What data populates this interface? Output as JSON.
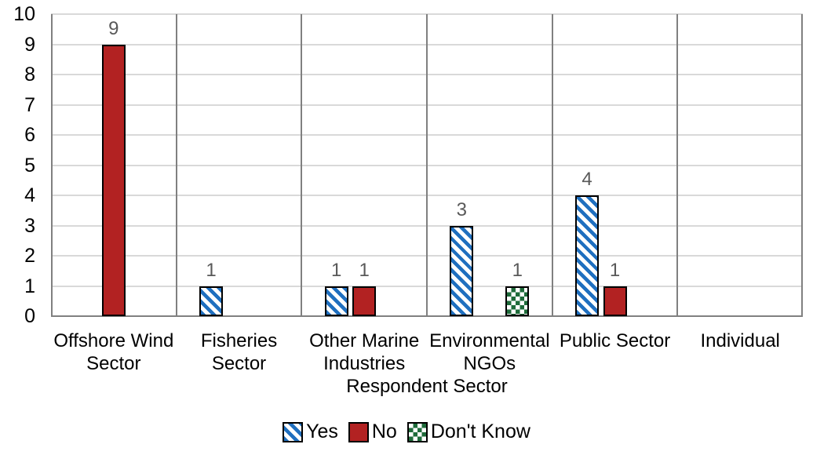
{
  "chart_data": {
    "type": "bar",
    "title": "",
    "xlabel": "Respondent Sector",
    "ylabel": "",
    "ylim": [
      0,
      10
    ],
    "yticks": [
      0,
      1,
      2,
      3,
      4,
      5,
      6,
      7,
      8,
      9,
      10
    ],
    "grid": true,
    "legend_position": "bottom",
    "categories": [
      "Offshore Wind Sector",
      "Fisheries Sector",
      "Other Marine Industries",
      "Environmental NGOs",
      "Public Sector",
      "Individual"
    ],
    "series": [
      {
        "name": "Yes",
        "pattern": "diagonal-stripes",
        "color": "#1F6FBF",
        "values": [
          0,
          1,
          1,
          3,
          4,
          0
        ]
      },
      {
        "name": "No",
        "pattern": "solid",
        "color": "#B22222",
        "values": [
          9,
          0,
          1,
          0,
          1,
          0
        ]
      },
      {
        "name": "Don't Know",
        "pattern": "checker",
        "color": "#1E6B3A",
        "values": [
          0,
          0,
          0,
          1,
          0,
          0
        ]
      }
    ],
    "data_labels": true
  },
  "style_colors": {
    "gridline": "#D9D9D9",
    "axis_line": "#808080",
    "bar_border": "#000000",
    "data_label": "#595959",
    "text": "#000000",
    "background": "#FFFFFF",
    "pattern_background": "#FFFFFF"
  }
}
